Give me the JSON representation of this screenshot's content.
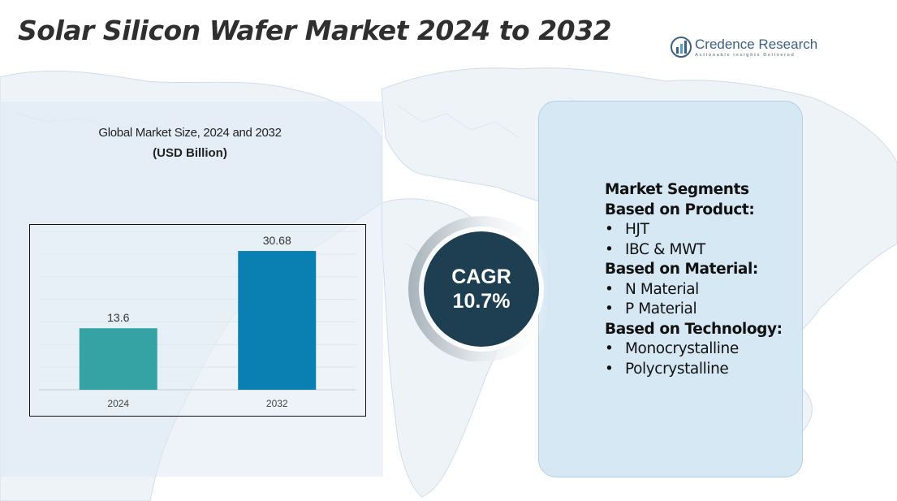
{
  "header": {
    "title": "Solar Silicon Wafer Market 2024 to 2032"
  },
  "brand": {
    "name": "Credence Research",
    "tagline": "Actionable Insights Delivered",
    "logo_icon": "bar-chart-logo-icon"
  },
  "chart_data": {
    "type": "bar",
    "title": "Global Market Size, 2024 and 2032",
    "subtitle": "(USD Billion)",
    "categories": [
      "2024",
      "2032"
    ],
    "values": [
      13.6,
      30.68
    ],
    "data_labels": [
      "13.6",
      "30.68"
    ],
    "colors": [
      "#35a3a3",
      "#0a7fb2"
    ],
    "ylim": [
      0,
      35
    ],
    "grid": true,
    "legend": false
  },
  "cagr": {
    "label": "CAGR",
    "value": "10.7%"
  },
  "segments": {
    "title": "Market Segments",
    "groups": [
      {
        "heading": "Based on Product:",
        "items": [
          "HJT",
          "IBC & MWT"
        ]
      },
      {
        "heading": "Based on Material:",
        "items": [
          "N Material",
          "P Material"
        ]
      },
      {
        "heading": "Based on Technology:",
        "items": [
          "Monocrystalline",
          "Polycrystalline"
        ]
      }
    ]
  },
  "theme": {
    "panel_left": "#dfeaf4",
    "panel_right": "#d6e8f4",
    "cagr_circle": "#1e3f52",
    "title_color": "#2f2f2f"
  }
}
